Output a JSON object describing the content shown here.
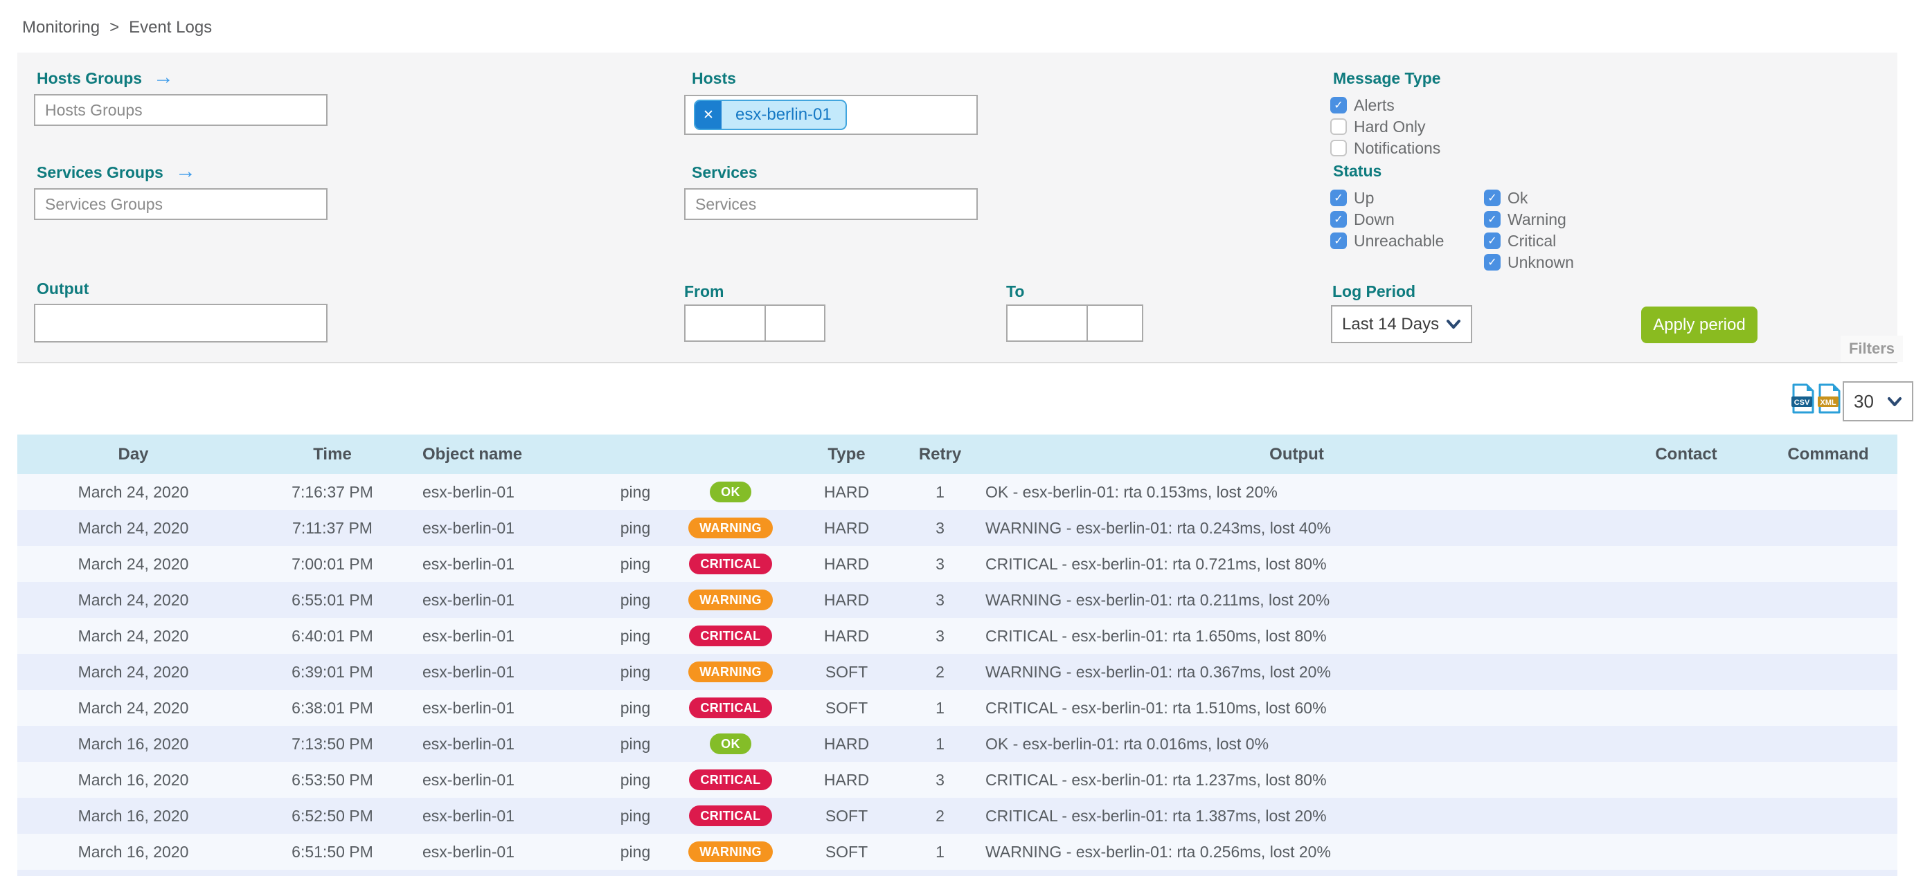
{
  "breadcrumb": {
    "items": [
      "Monitoring",
      "Event Logs"
    ],
    "separator": ">"
  },
  "icons": {
    "arrow_right": "→",
    "chip_close": "✕",
    "check": "✓"
  },
  "filter_panel": {
    "hosts_groups_label": "Hosts Groups",
    "hosts_groups_placeholder": "Hosts Groups",
    "services_groups_label": "Services Groups",
    "services_groups_placeholder": "Services Groups",
    "hosts_label": "Hosts",
    "hosts_selected_chip": "esx-berlin-01",
    "services_label": "Services",
    "services_placeholder": "Services",
    "output_label": "Output",
    "output_value": "",
    "from_label": "From",
    "from_date_value": "",
    "from_time_value": "",
    "to_label": "To",
    "to_date_value": "",
    "to_time_value": "",
    "message_type": {
      "label": "Message Type",
      "options": [
        {
          "label": "Alerts",
          "checked": true
        },
        {
          "label": "Hard Only",
          "checked": false
        },
        {
          "label": "Notifications",
          "checked": false
        }
      ]
    },
    "status": {
      "label": "Status",
      "col1": [
        {
          "label": "Up",
          "checked": true
        },
        {
          "label": "Down",
          "checked": true
        },
        {
          "label": "Unreachable",
          "checked": true
        }
      ],
      "col2": [
        {
          "label": "Ok",
          "checked": true
        },
        {
          "label": "Warning",
          "checked": true
        },
        {
          "label": "Critical",
          "checked": true
        },
        {
          "label": "Unknown",
          "checked": true
        }
      ]
    },
    "log_period": {
      "label": "Log Period",
      "value": "Last 14 Days"
    },
    "apply_button_label": "Apply period",
    "filters_tab_label": "Filters"
  },
  "toolbar": {
    "export": [
      "CSV",
      "XML"
    ],
    "page_size": "30"
  },
  "table": {
    "columns": [
      "Day",
      "Time",
      "Object name",
      "",
      "",
      "Type",
      "Retry",
      "Output",
      "Contact",
      "Command"
    ],
    "rows": [
      {
        "day": "March 24, 2020",
        "time": "7:16:37 PM",
        "object": "esx-berlin-01",
        "service": "ping",
        "status": "OK",
        "type": "HARD",
        "retry": "1",
        "output": "OK - esx-berlin-01: rta 0.153ms, lost 20%",
        "contact": "",
        "command": ""
      },
      {
        "day": "March 24, 2020",
        "time": "7:11:37 PM",
        "object": "esx-berlin-01",
        "service": "ping",
        "status": "WARNING",
        "type": "HARD",
        "retry": "3",
        "output": "WARNING - esx-berlin-01: rta 0.243ms, lost 40%",
        "contact": "",
        "command": ""
      },
      {
        "day": "March 24, 2020",
        "time": "7:00:01 PM",
        "object": "esx-berlin-01",
        "service": "ping",
        "status": "CRITICAL",
        "type": "HARD",
        "retry": "3",
        "output": "CRITICAL - esx-berlin-01: rta 0.721ms, lost 80%",
        "contact": "",
        "command": ""
      },
      {
        "day": "March 24, 2020",
        "time": "6:55:01 PM",
        "object": "esx-berlin-01",
        "service": "ping",
        "status": "WARNING",
        "type": "HARD",
        "retry": "3",
        "output": "WARNING - esx-berlin-01: rta 0.211ms, lost 20%",
        "contact": "",
        "command": ""
      },
      {
        "day": "March 24, 2020",
        "time": "6:40:01 PM",
        "object": "esx-berlin-01",
        "service": "ping",
        "status": "CRITICAL",
        "type": "HARD",
        "retry": "3",
        "output": "CRITICAL - esx-berlin-01: rta 1.650ms, lost 80%",
        "contact": "",
        "command": ""
      },
      {
        "day": "March 24, 2020",
        "time": "6:39:01 PM",
        "object": "esx-berlin-01",
        "service": "ping",
        "status": "WARNING",
        "type": "SOFT",
        "retry": "2",
        "output": "WARNING - esx-berlin-01: rta 0.367ms, lost 20%",
        "contact": "",
        "command": ""
      },
      {
        "day": "March 24, 2020",
        "time": "6:38:01 PM",
        "object": "esx-berlin-01",
        "service": "ping",
        "status": "CRITICAL",
        "type": "SOFT",
        "retry": "1",
        "output": "CRITICAL - esx-berlin-01: rta 1.510ms, lost 60%",
        "contact": "",
        "command": ""
      },
      {
        "day": "March 16, 2020",
        "time": "7:13:50 PM",
        "object": "esx-berlin-01",
        "service": "ping",
        "status": "OK",
        "type": "HARD",
        "retry": "1",
        "output": "OK - esx-berlin-01: rta 0.016ms, lost 0%",
        "contact": "",
        "command": ""
      },
      {
        "day": "March 16, 2020",
        "time": "6:53:50 PM",
        "object": "esx-berlin-01",
        "service": "ping",
        "status": "CRITICAL",
        "type": "HARD",
        "retry": "3",
        "output": "CRITICAL - esx-berlin-01: rta 1.237ms, lost 80%",
        "contact": "",
        "command": ""
      },
      {
        "day": "March 16, 2020",
        "time": "6:52:50 PM",
        "object": "esx-berlin-01",
        "service": "ping",
        "status": "CRITICAL",
        "type": "SOFT",
        "retry": "2",
        "output": "CRITICAL - esx-berlin-01: rta 1.387ms, lost 20%",
        "contact": "",
        "command": ""
      },
      {
        "day": "March 16, 2020",
        "time": "6:51:50 PM",
        "object": "esx-berlin-01",
        "service": "ping",
        "status": "WARNING",
        "type": "SOFT",
        "retry": "1",
        "output": "WARNING - esx-berlin-01: rta 0.256ms, lost 20%",
        "contact": "",
        "command": ""
      }
    ]
  },
  "colors": {
    "label_teal": "#0e7b7e",
    "checkbox_blue": "#4a90e2",
    "apply_green": "#8abb20",
    "status_ok": "#84bd28",
    "status_warning": "#f6941e",
    "status_critical": "#dc1a4c",
    "chip_border": "#41a5de",
    "chip_bg": "#c3e9fb",
    "chip_text": "#1578c4",
    "table_header_bg": "#d2ecf6",
    "row_odd": "#f5f8fd",
    "row_even": "#e9eefb"
  }
}
